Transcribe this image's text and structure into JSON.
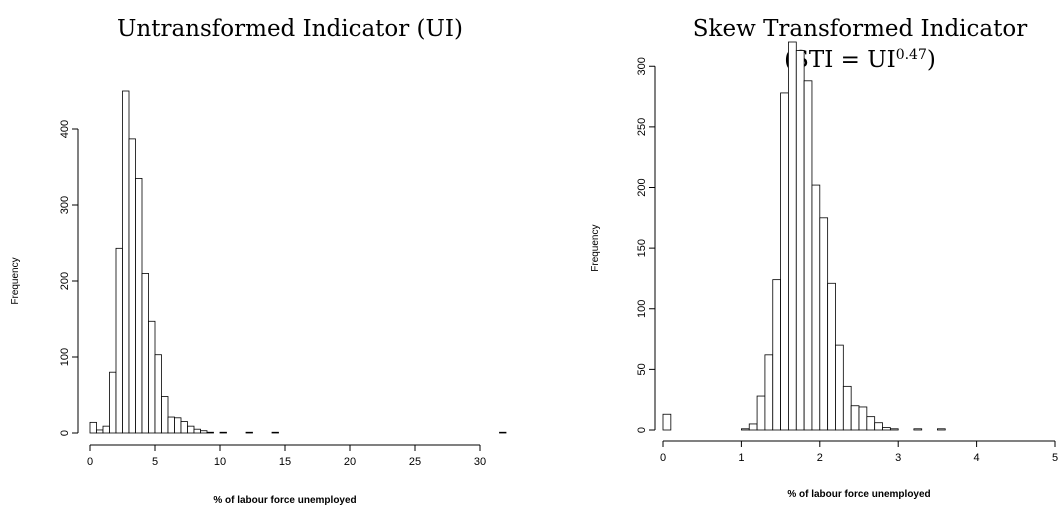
{
  "chart_data": [
    {
      "type": "histogram",
      "title": "Untransformed Indicator (UI)",
      "xlabel": "% of labour force unemployed",
      "ylabel": "Frequency",
      "bins": [
        0,
        0.5,
        1,
        1.5,
        2,
        2.5,
        3,
        3.5,
        4,
        4.5,
        5,
        5.5,
        6,
        6.5,
        7,
        7.5,
        8,
        8.5,
        9,
        9.5,
        10,
        10.5,
        11,
        11.5,
        12,
        12.5,
        13,
        13.5,
        14,
        14.5,
        15,
        15.5,
        16,
        16.5,
        17,
        17.5,
        18,
        18.5,
        19,
        19.5,
        20,
        20.5,
        21,
        21.5,
        22,
        22.5,
        23,
        23.5,
        24,
        24.5,
        25,
        25.5,
        26,
        26.5,
        27,
        27.5,
        28,
        28.5,
        29,
        29.5,
        30,
        30.5,
        31,
        31.5,
        32
      ],
      "values": [
        14,
        4,
        9,
        80,
        243,
        450,
        387,
        335,
        210,
        147,
        103,
        48,
        21,
        20,
        15,
        9,
        5,
        3,
        1,
        0,
        1,
        0,
        0,
        0,
        1,
        0,
        0,
        0,
        1,
        0,
        0,
        0,
        0,
        0,
        0,
        0,
        0,
        0,
        0,
        0,
        0,
        0,
        0,
        0,
        0,
        0,
        0,
        0,
        0,
        0,
        0,
        0,
        0,
        0,
        0,
        0,
        0,
        0,
        0,
        0,
        0,
        0,
        0,
        1
      ],
      "color": "#ffffff",
      "xlim": [
        0,
        32
      ],
      "xticks": [
        0,
        5,
        10,
        15,
        20,
        25,
        30
      ],
      "ylim": [
        0,
        450
      ],
      "yticks": [
        0,
        100,
        200,
        300,
        400
      ]
    },
    {
      "type": "histogram",
      "title": "Skew Transformed Indicator",
      "subtitle": {
        "text": "(STI = UI",
        "superscript": "0.47",
        "closing": ")"
      },
      "xlabel": "% of labour force unemployed",
      "ylabel": "Frequency",
      "bins": [
        0,
        0.1,
        0.2,
        0.3,
        0.4,
        0.5,
        0.6,
        0.7,
        0.8,
        0.9,
        1,
        1.1,
        1.2,
        1.3,
        1.4,
        1.5,
        1.6,
        1.7,
        1.8,
        1.9,
        2,
        2.1,
        2.2,
        2.3,
        2.4,
        2.5,
        2.6,
        2.7,
        2.8,
        2.9,
        3,
        3.1,
        3.2,
        3.3,
        3.4,
        3.5,
        3.6,
        3.7,
        3.8,
        3.9,
        4,
        4.1,
        4.2,
        4.3,
        4.4,
        4.5,
        4.6,
        4.7,
        4.8,
        4.9,
        5
      ],
      "values": [
        13,
        0,
        0,
        0,
        0,
        0,
        0,
        0,
        0,
        0,
        1,
        5,
        28,
        62,
        124,
        278,
        320,
        313,
        288,
        202,
        175,
        121,
        70,
        36,
        20,
        19,
        11,
        6,
        2,
        1,
        0,
        0,
        1,
        0,
        0,
        1,
        0,
        0,
        0,
        0,
        0,
        0,
        0,
        0,
        0,
        0,
        0,
        0,
        0,
        0
      ],
      "color": "#ffffff",
      "xlim": [
        0,
        5
      ],
      "xticks": [
        0,
        1,
        2,
        3,
        4,
        5
      ],
      "ylim": [
        0,
        320
      ],
      "yticks": [
        0,
        50,
        100,
        150,
        200,
        250,
        300
      ]
    }
  ]
}
